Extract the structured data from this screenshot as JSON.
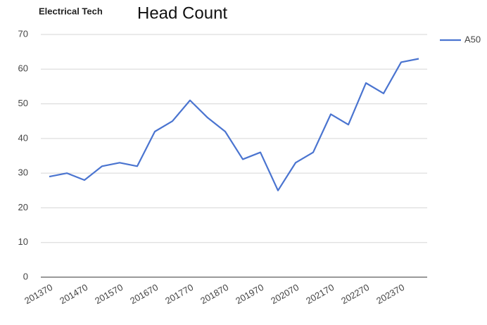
{
  "chart_data": {
    "type": "line",
    "title": "Head Count",
    "subtitle": "Electrical Tech",
    "categories": [
      "201370",
      null,
      "201470",
      null,
      "201570",
      null,
      "201670",
      null,
      "201770",
      null,
      "201870",
      null,
      "201970",
      null,
      "202070",
      null,
      "202170",
      null,
      "202270",
      null,
      "202370",
      null
    ],
    "series": [
      {
        "name": "A50",
        "color": "#4a74d0",
        "values": [
          29,
          30,
          28,
          32,
          33,
          32,
          42,
          45,
          51,
          46,
          42,
          34,
          36,
          25,
          33,
          36,
          47,
          44,
          56,
          53,
          62,
          63
        ]
      }
    ],
    "ylim": [
      0,
      70
    ],
    "yticks": [
      0,
      10,
      20,
      30,
      40,
      50,
      60,
      70
    ],
    "grid": true,
    "legend": "right"
  }
}
